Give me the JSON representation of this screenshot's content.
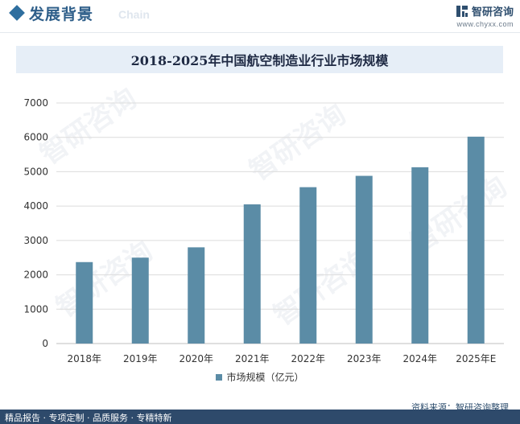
{
  "header": {
    "section_title": "发展背景",
    "section_subtitle": "Chain",
    "brand_name": "智研咨询",
    "brand_url": "www.chyxx.com"
  },
  "watermark_text": "智研咨询",
  "chart_data": {
    "type": "bar",
    "title": "2018-2025年中国航空制造业行业市场规模",
    "categories": [
      "2018年",
      "2019年",
      "2020年",
      "2021年",
      "2022年",
      "2023年",
      "2024年",
      "2025年E"
    ],
    "series": [
      {
        "name": "市场规模（亿元）",
        "values": [
          2370,
          2500,
          2800,
          4050,
          4550,
          4880,
          5130,
          6020
        ]
      }
    ],
    "ylim": [
      0,
      7000
    ],
    "yticks": [
      0,
      1000,
      2000,
      3000,
      4000,
      5000,
      6000,
      7000
    ],
    "xlabel": "",
    "ylabel": "",
    "grid": true,
    "legend_position": "bottom-center",
    "bar_color": "#5b8ca6",
    "grid_color": "#dcdcdc"
  },
  "source": "资料来源：智研咨询整理",
  "footer": "精品报告 · 专项定制 · 品质服务 · 专精特新"
}
